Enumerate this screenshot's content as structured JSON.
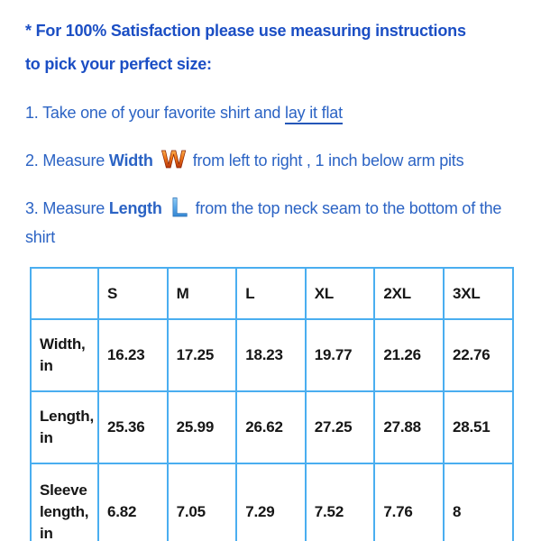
{
  "colors": {
    "heading_blue": "#1b4ec4",
    "body_blue": "#2b63c4",
    "table_border_blue": "#4aaef0",
    "table_text": "#161616",
    "w_icon_gradient": [
      "#ffd37a",
      "#f07818",
      "#9a1004"
    ],
    "l_icon_gradient": [
      "#aee0fb",
      "#56a6e8",
      "#1e6fc0"
    ]
  },
  "header": {
    "line1": "* For 100% Satisfaction please use measuring instructions",
    "line2": "to pick your perfect size:"
  },
  "instructions": {
    "step1": {
      "text": "1. Take one of your favorite shirt and ",
      "underlined": "lay it flat"
    },
    "step2": {
      "pre": "2. Measure ",
      "bold": "Width",
      "icon_char": "W",
      "post": "from left to right , 1 inch below arm pits"
    },
    "step3": {
      "pre": "3. Measure ",
      "bold": "Length",
      "icon_char": "L",
      "post": "from the top neck seam to the bottom of the shirt"
    }
  },
  "size_table": {
    "columns": [
      "",
      "S",
      "M",
      "L",
      "XL",
      "2XL",
      "3XL"
    ],
    "rows": [
      {
        "label": "Width, in",
        "values": [
          "16.23",
          "17.25",
          "18.23",
          "19.77",
          "21.26",
          "22.76"
        ]
      },
      {
        "label": "Length, in",
        "values": [
          "25.36",
          "25.99",
          "26.62",
          "27.25",
          "27.88",
          "28.51"
        ]
      },
      {
        "label": "Sleeve length, in",
        "values": [
          "6.82",
          "7.05",
          "7.29",
          "7.52",
          "7.76",
          "8"
        ]
      }
    ]
  }
}
